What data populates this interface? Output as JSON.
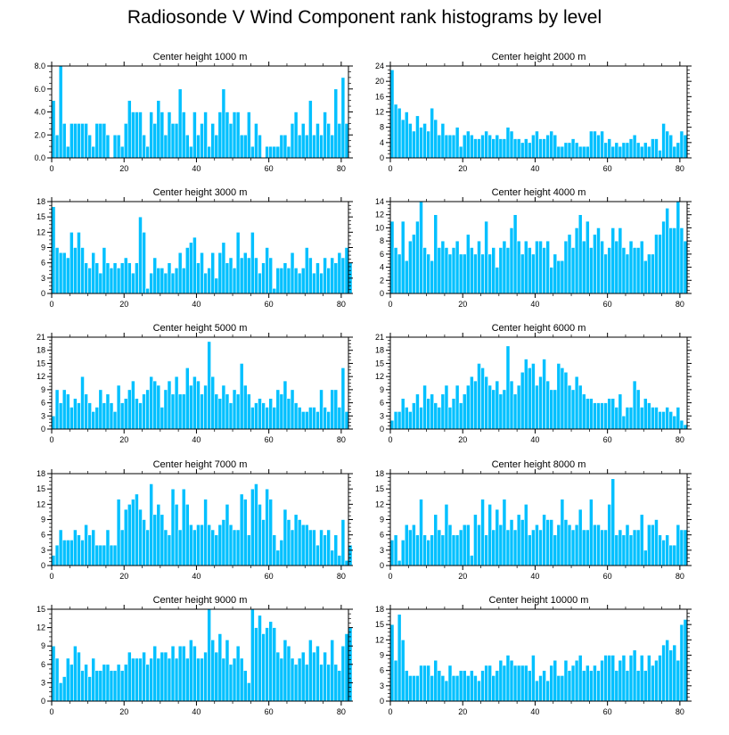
{
  "title": "Radiosonde V Wind Component rank histograms by level",
  "colors": {
    "bar": "#00c0ff",
    "bar_edge": "#ffffff",
    "axis": "#000000"
  },
  "chart_data": [
    {
      "type": "bar",
      "title": "Center height 1000 m",
      "xlim": [
        0,
        82
      ],
      "ylim": [
        0,
        8
      ],
      "xticks": [
        "0",
        "20",
        "40",
        "60",
        "80"
      ],
      "yticks": [
        "0.0",
        "2.0",
        "4.0",
        "6.0",
        "8.0"
      ],
      "values": [
        5,
        2,
        8,
        3,
        1,
        3,
        3,
        3,
        3,
        3,
        2,
        1,
        3,
        3,
        3,
        2,
        0,
        2,
        2,
        1,
        3,
        5,
        4,
        4,
        4,
        2,
        1,
        4,
        3,
        5,
        4,
        2,
        4,
        3,
        3,
        6,
        4,
        2,
        1,
        4,
        2,
        3,
        4,
        1,
        3,
        2,
        4,
        6,
        4,
        3,
        4,
        4,
        2,
        2,
        4,
        1,
        3,
        2,
        0,
        1,
        1,
        1,
        1,
        2,
        2,
        1,
        3,
        4,
        2,
        3,
        2,
        5,
        2,
        3,
        2,
        4,
        3,
        2,
        6,
        3,
        7,
        3
      ]
    },
    {
      "type": "bar",
      "title": "Center height 2000 m",
      "xlim": [
        0,
        82
      ],
      "ylim": [
        0,
        24
      ],
      "xticks": [
        "0",
        "20",
        "40",
        "60",
        "80"
      ],
      "yticks": [
        "0",
        "4",
        "8",
        "12",
        "16",
        "20",
        "24"
      ],
      "values": [
        23,
        14,
        13,
        10,
        12,
        9,
        7,
        11,
        8,
        9,
        7,
        13,
        10,
        6,
        9,
        6,
        6,
        6,
        8,
        3,
        6,
        7,
        6,
        5,
        5,
        6,
        7,
        6,
        5,
        6,
        5,
        5,
        8,
        7,
        5,
        5,
        4,
        5,
        4,
        6,
        7,
        5,
        5,
        6,
        7,
        6,
        3,
        3,
        4,
        4,
        5,
        4,
        3,
        3,
        3,
        7,
        7,
        6,
        7,
        4,
        5,
        3,
        4,
        3,
        4,
        4,
        5,
        6,
        4,
        3,
        4,
        3,
        5,
        5,
        2,
        9,
        7,
        6,
        3,
        4,
        7,
        6
      ]
    },
    {
      "type": "bar",
      "title": "Center height 3000 m",
      "xlim": [
        0,
        82
      ],
      "ylim": [
        0,
        18
      ],
      "xticks": [
        "0",
        "20",
        "40",
        "60",
        "80"
      ],
      "yticks": [
        "0",
        "3",
        "6",
        "9",
        "12",
        "15",
        "18"
      ],
      "values": [
        17,
        9,
        8,
        8,
        7,
        12,
        9,
        12,
        9,
        6,
        5,
        8,
        6,
        4,
        9,
        6,
        5,
        6,
        5,
        6,
        7,
        6,
        4,
        6,
        15,
        12,
        1,
        4,
        7,
        5,
        5,
        4,
        6,
        4,
        5,
        8,
        5,
        9,
        10,
        11,
        6,
        8,
        4,
        5,
        8,
        3,
        8,
        10,
        6,
        7,
        5,
        12,
        7,
        8,
        7,
        12,
        7,
        4,
        6,
        9,
        7,
        1,
        5,
        5,
        6,
        5,
        8,
        5,
        4,
        5,
        9,
        7,
        4,
        6,
        4,
        7,
        5,
        7,
        6,
        8,
        7,
        9,
        6
      ]
    },
    {
      "type": "bar",
      "title": "Center height 4000 m",
      "xlim": [
        0,
        82
      ],
      "ylim": [
        0,
        14
      ],
      "xticks": [
        "0",
        "20",
        "40",
        "60",
        "80"
      ],
      "yticks": [
        "0",
        "2",
        "4",
        "6",
        "8",
        "10",
        "12",
        "14"
      ],
      "values": [
        11,
        7,
        6,
        11,
        5,
        8,
        9,
        11,
        14,
        7,
        6,
        5,
        12,
        7,
        8,
        7,
        6,
        7,
        8,
        6,
        6,
        9,
        7,
        6,
        8,
        6,
        11,
        6,
        7,
        4,
        7,
        8,
        7,
        10,
        12,
        8,
        6,
        8,
        7,
        6,
        8,
        8,
        7,
        8,
        4,
        6,
        5,
        5,
        8,
        9,
        7,
        10,
        12,
        8,
        11,
        7,
        9,
        10,
        8,
        6,
        7,
        10,
        8,
        10,
        7,
        6,
        8,
        7,
        7,
        8,
        5,
        6,
        6,
        9,
        9,
        11,
        13,
        10,
        10,
        14,
        10,
        8
      ]
    },
    {
      "type": "bar",
      "title": "Center height 5000 m",
      "xlim": [
        0,
        82
      ],
      "ylim": [
        0,
        21
      ],
      "xticks": [
        "0",
        "20",
        "40",
        "60",
        "80"
      ],
      "yticks": [
        "0",
        "3",
        "6",
        "9",
        "12",
        "15",
        "18",
        "21"
      ],
      "values": [
        3,
        9,
        6,
        9,
        8,
        5,
        7,
        6,
        12,
        8,
        6,
        4,
        5,
        9,
        6,
        8,
        6,
        4,
        10,
        6,
        7,
        9,
        11,
        7,
        6,
        8,
        9,
        12,
        11,
        10,
        5,
        9,
        11,
        8,
        12,
        8,
        8,
        14,
        10,
        12,
        11,
        8,
        10,
        20,
        12,
        8,
        7,
        10,
        8,
        6,
        9,
        8,
        15,
        10,
        8,
        5,
        6,
        7,
        6,
        5,
        7,
        5,
        9,
        8,
        11,
        7,
        9,
        6,
        5,
        4,
        4,
        5,
        5,
        4,
        9,
        5,
        4,
        9,
        9,
        5,
        14,
        4
      ]
    },
    {
      "type": "bar",
      "title": "Center height 6000 m",
      "xlim": [
        0,
        82
      ],
      "ylim": [
        0,
        21
      ],
      "xticks": [
        "0",
        "20",
        "40",
        "60",
        "80"
      ],
      "yticks": [
        "0",
        "3",
        "6",
        "9",
        "12",
        "15",
        "18",
        "21"
      ],
      "values": [
        2,
        4,
        4,
        7,
        5,
        4,
        6,
        8,
        5,
        10,
        7,
        8,
        6,
        5,
        8,
        10,
        5,
        7,
        10,
        6,
        8,
        10,
        12,
        11,
        15,
        14,
        12,
        10,
        9,
        11,
        8,
        9,
        19,
        11,
        8,
        10,
        13,
        16,
        14,
        15,
        10,
        12,
        16,
        11,
        9,
        9,
        15,
        14,
        13,
        10,
        9,
        12,
        10,
        8,
        7,
        7,
        6,
        6,
        6,
        6,
        7,
        7,
        5,
        8,
        3,
        5,
        5,
        11,
        9,
        5,
        7,
        6,
        5,
        5,
        4,
        4,
        5,
        4,
        3,
        5,
        2,
        1
      ]
    },
    {
      "type": "bar",
      "title": "Center height 7000 m",
      "xlim": [
        0,
        82
      ],
      "ylim": [
        0,
        18
      ],
      "xticks": [
        "0",
        "20",
        "40",
        "60",
        "80"
      ],
      "yticks": [
        "0",
        "3",
        "6",
        "9",
        "12",
        "15",
        "18"
      ],
      "values": [
        2,
        4,
        7,
        5,
        5,
        5,
        7,
        6,
        5,
        8,
        6,
        7,
        4,
        4,
        4,
        7,
        4,
        4,
        13,
        7,
        11,
        12,
        13,
        14,
        11,
        9,
        7,
        16,
        10,
        12,
        10,
        7,
        6,
        15,
        12,
        7,
        15,
        12,
        8,
        7,
        8,
        8,
        13,
        8,
        7,
        6,
        8,
        9,
        12,
        8,
        7,
        7,
        14,
        13,
        6,
        15,
        16,
        12,
        9,
        15,
        13,
        6,
        3,
        5,
        11,
        9,
        7,
        10,
        9,
        8,
        8,
        7,
        7,
        4,
        7,
        6,
        7,
        3,
        6,
        2,
        9,
        1,
        4
      ]
    },
    {
      "type": "bar",
      "title": "Center height 8000 m",
      "xlim": [
        0,
        82
      ],
      "ylim": [
        0,
        18
      ],
      "xticks": [
        "0",
        "20",
        "40",
        "60",
        "80"
      ],
      "yticks": [
        "0",
        "3",
        "6",
        "9",
        "12",
        "15",
        "18"
      ],
      "values": [
        5,
        6,
        1,
        5,
        8,
        7,
        8,
        6,
        13,
        6,
        5,
        6,
        10,
        7,
        6,
        12,
        8,
        6,
        6,
        7,
        8,
        8,
        2,
        10,
        8,
        13,
        6,
        12,
        7,
        11,
        8,
        13,
        7,
        9,
        7,
        10,
        9,
        12,
        6,
        7,
        8,
        7,
        10,
        9,
        9,
        6,
        8,
        13,
        9,
        8,
        7,
        8,
        11,
        7,
        7,
        13,
        8,
        8,
        7,
        7,
        12,
        17,
        6,
        7,
        6,
        8,
        6,
        7,
        7,
        10,
        3,
        8,
        8,
        9,
        6,
        5,
        6,
        4,
        4,
        8,
        7,
        7
      ]
    },
    {
      "type": "bar",
      "title": "Center height 9000 m",
      "xlim": [
        0,
        82
      ],
      "ylim": [
        0,
        15
      ],
      "xticks": [
        "0",
        "20",
        "40",
        "60",
        "80"
      ],
      "yticks": [
        "0",
        "3",
        "6",
        "9",
        "12",
        "15"
      ],
      "values": [
        9,
        7,
        3,
        4,
        7,
        6,
        9,
        8,
        5,
        6,
        4,
        7,
        5,
        5,
        6,
        6,
        5,
        5,
        6,
        5,
        6,
        8,
        7,
        7,
        7,
        8,
        6,
        7,
        9,
        7,
        8,
        8,
        7,
        9,
        7,
        9,
        9,
        7,
        10,
        9,
        7,
        7,
        8,
        15,
        10,
        8,
        11,
        7,
        10,
        6,
        7,
        9,
        7,
        5,
        3,
        15,
        12,
        14,
        11,
        12,
        13,
        12,
        8,
        7,
        10,
        9,
        7,
        6,
        7,
        8,
        6,
        10,
        8,
        9,
        6,
        8,
        6,
        10,
        6,
        5,
        9,
        11,
        12
      ]
    },
    {
      "type": "bar",
      "title": "Center height 10000 m",
      "xlim": [
        0,
        82
      ],
      "ylim": [
        0,
        18
      ],
      "xticks": [
        "0",
        "20",
        "40",
        "60",
        "80"
      ],
      "yticks": [
        "0",
        "3",
        "6",
        "9",
        "12",
        "15",
        "18"
      ],
      "values": [
        15,
        8,
        17,
        12,
        6,
        5,
        5,
        5,
        7,
        7,
        7,
        5,
        8,
        6,
        5,
        4,
        7,
        5,
        5,
        6,
        6,
        5,
        6,
        5,
        4,
        6,
        7,
        7,
        5,
        6,
        8,
        7,
        9,
        8,
        7,
        7,
        7,
        7,
        6,
        9,
        4,
        5,
        6,
        4,
        7,
        8,
        5,
        5,
        8,
        6,
        7,
        8,
        9,
        6,
        7,
        6,
        7,
        6,
        8,
        9,
        9,
        9,
        6,
        8,
        9,
        6,
        9,
        10,
        6,
        9,
        6,
        9,
        7,
        8,
        9,
        11,
        12,
        10,
        11,
        8,
        15,
        16
      ]
    }
  ]
}
